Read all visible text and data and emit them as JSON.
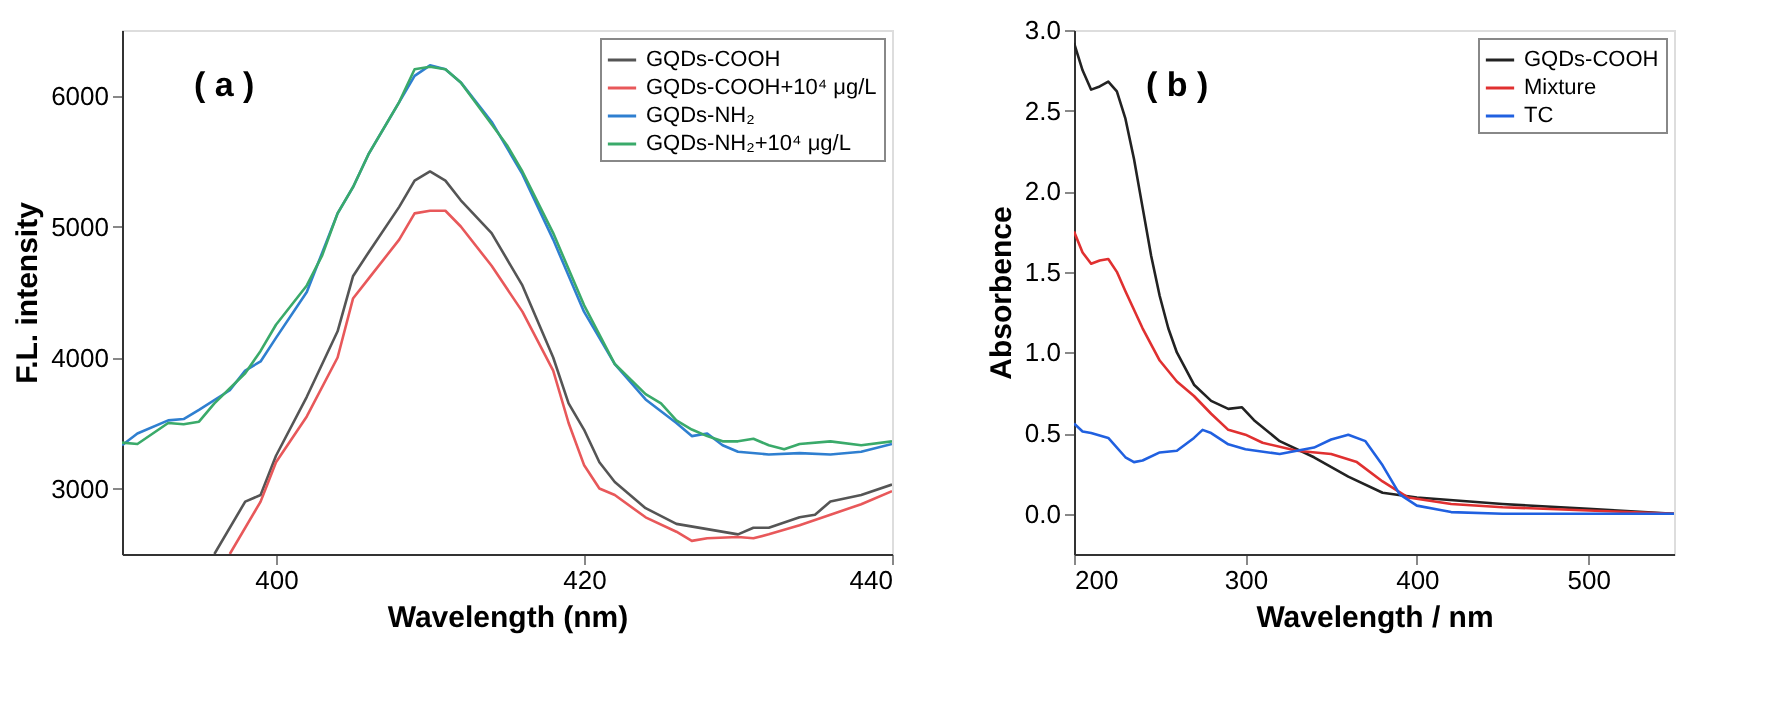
{
  "chart_data": [
    {
      "type": "line",
      "xlabel": "Wavelength (nm)",
      "ylabel": "F.L. intensity",
      "annotations": [
        "( a )"
      ],
      "xlim": [
        390,
        440
      ],
      "ylim": [
        2500,
        6500
      ],
      "xticks": [
        400,
        420,
        440
      ],
      "yticks": [
        3000,
        4000,
        5000,
        6000
      ],
      "legend": "top right",
      "grid": false,
      "series": [
        {
          "name": "GQDs-COOH",
          "color": "#555555",
          "x": [
            396,
            398,
            399,
            400,
            402,
            404,
            405,
            406,
            408,
            409,
            410,
            411,
            412,
            414,
            416,
            418,
            419,
            420,
            421,
            422,
            424,
            426,
            428,
            430,
            431,
            432,
            434,
            435,
            436,
            438,
            440
          ],
          "values": [
            2500,
            2900,
            2950,
            3250,
            3700,
            4200,
            4620,
            4800,
            5150,
            5350,
            5420,
            5350,
            5200,
            4950,
            4550,
            4000,
            3650,
            3450,
            3200,
            3050,
            2850,
            2730,
            2690,
            2650,
            2700,
            2700,
            2780,
            2800,
            2900,
            2950,
            3030
          ]
        },
        {
          "name": "GQDs-COOH+10⁴ μg/L",
          "color": "#e8585a",
          "x": [
            397,
            399,
            400,
            402,
            404,
            405,
            406,
            408,
            409,
            410,
            411,
            412,
            414,
            416,
            418,
            419,
            420,
            421,
            422,
            424,
            426,
            427,
            428,
            430,
            431,
            432,
            434,
            436,
            438,
            440
          ],
          "values": [
            2500,
            2900,
            3200,
            3550,
            4000,
            4450,
            4600,
            4900,
            5100,
            5120,
            5120,
            5000,
            4700,
            4350,
            3900,
            3500,
            3180,
            3000,
            2950,
            2780,
            2670,
            2600,
            2620,
            2630,
            2620,
            2650,
            2720,
            2800,
            2880,
            2980
          ]
        },
        {
          "name": "GQDs-NH₂",
          "color": "#2f7fd0",
          "x": [
            390,
            391,
            393,
            394,
            395,
            397,
            398,
            399,
            400,
            402,
            403,
            404,
            405,
            406,
            408,
            409,
            410,
            411,
            412,
            414,
            415,
            416,
            418,
            420,
            422,
            424,
            426,
            427,
            428,
            429,
            430,
            432,
            434,
            436,
            438,
            440
          ],
          "values": [
            3330,
            3420,
            3520,
            3530,
            3600,
            3750,
            3900,
            3970,
            4150,
            4500,
            4800,
            5100,
            5300,
            5550,
            5950,
            6150,
            6230,
            6200,
            6100,
            5800,
            5600,
            5400,
            4900,
            4350,
            3950,
            3680,
            3500,
            3400,
            3420,
            3330,
            3280,
            3260,
            3270,
            3260,
            3280,
            3340
          ]
        },
        {
          "name": "GQDs-NH₂+10⁴ μg/L",
          "color": "#3aaa6a",
          "x": [
            390,
            391,
            393,
            394,
            395,
            396,
            398,
            399,
            400,
            402,
            403,
            404,
            405,
            406,
            408,
            409,
            410,
            411,
            412,
            414,
            415,
            416,
            418,
            420,
            422,
            424,
            425,
            426,
            427,
            428,
            429,
            430,
            431,
            432,
            433,
            434,
            436,
            438,
            440
          ],
          "values": [
            3350,
            3340,
            3500,
            3490,
            3510,
            3650,
            3880,
            4050,
            4250,
            4550,
            4780,
            5100,
            5300,
            5550,
            5950,
            6200,
            6220,
            6200,
            6100,
            5780,
            5620,
            5420,
            4950,
            4400,
            3950,
            3720,
            3650,
            3520,
            3450,
            3400,
            3360,
            3360,
            3380,
            3330,
            3300,
            3340,
            3360,
            3330,
            3360
          ]
        }
      ]
    },
    {
      "type": "line",
      "xlabel": "Wavelength / nm",
      "ylabel": "Absorbence",
      "annotations": [
        "( b )"
      ],
      "xlim": [
        200,
        550
      ],
      "ylim": [
        -0.25,
        3.0
      ],
      "xticks": [
        200,
        300,
        400,
        500
      ],
      "yticks": [
        {
          "value": 0,
          "label": "0.0"
        },
        0.5,
        {
          "value": 1,
          "label": "1.0"
        },
        1.5,
        {
          "value": 2,
          "label": "2.0"
        },
        2.5,
        {
          "value": 3,
          "label": "3.0"
        }
      ],
      "legend": "top right",
      "grid": false,
      "series": [
        {
          "name": "GQDs-COOH",
          "color": "#222222",
          "x": [
            200,
            205,
            210,
            215,
            220,
            225,
            230,
            235,
            240,
            245,
            250,
            255,
            260,
            270,
            280,
            290,
            298,
            305,
            320,
            340,
            360,
            380,
            400,
            450,
            500,
            550
          ],
          "values": [
            2.92,
            2.75,
            2.63,
            2.65,
            2.68,
            2.62,
            2.45,
            2.2,
            1.9,
            1.6,
            1.35,
            1.15,
            1.0,
            0.8,
            0.7,
            0.65,
            0.66,
            0.58,
            0.45,
            0.35,
            0.23,
            0.13,
            0.1,
            0.06,
            0.03,
            0.0
          ]
        },
        {
          "name": "Mixture",
          "color": "#e03030",
          "x": [
            200,
            205,
            210,
            215,
            220,
            225,
            230,
            240,
            250,
            260,
            270,
            280,
            290,
            300,
            310,
            330,
            350,
            365,
            380,
            395,
            420,
            450,
            500,
            550
          ],
          "values": [
            1.75,
            1.62,
            1.55,
            1.57,
            1.58,
            1.5,
            1.38,
            1.15,
            0.95,
            0.82,
            0.73,
            0.62,
            0.52,
            0.49,
            0.44,
            0.39,
            0.37,
            0.32,
            0.2,
            0.1,
            0.06,
            0.04,
            0.02,
            0.0
          ]
        },
        {
          "name": "TC",
          "color": "#2060e0",
          "x": [
            200,
            205,
            210,
            220,
            230,
            235,
            240,
            250,
            260,
            270,
            275,
            280,
            290,
            300,
            320,
            340,
            350,
            360,
            370,
            380,
            390,
            400,
            420,
            450,
            550
          ],
          "values": [
            0.56,
            0.51,
            0.5,
            0.47,
            0.35,
            0.32,
            0.33,
            0.38,
            0.39,
            0.47,
            0.52,
            0.5,
            0.43,
            0.4,
            0.37,
            0.41,
            0.46,
            0.49,
            0.45,
            0.3,
            0.12,
            0.05,
            0.01,
            0.0,
            0.0
          ]
        }
      ]
    }
  ]
}
